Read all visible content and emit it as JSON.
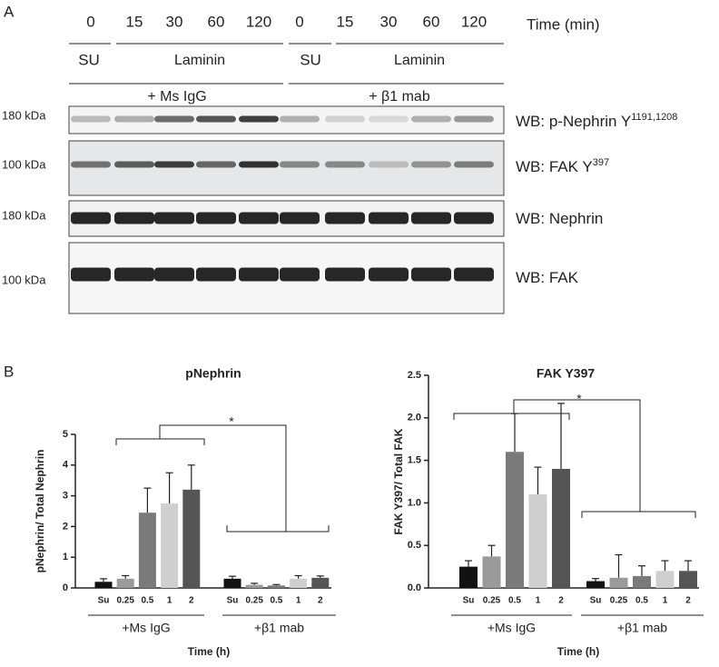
{
  "panel_a": {
    "label": "A",
    "times": [
      "0",
      "15",
      "30",
      "60",
      "120",
      "0",
      "15",
      "30",
      "60",
      "120"
    ],
    "time_label": "Time (min)",
    "conditions": [
      "SU",
      "Laminin",
      "SU",
      "Laminin"
    ],
    "treatments": [
      "+ Ms IgG",
      "+ β1 mab"
    ],
    "blots": [
      {
        "size": "180 kDa",
        "label": "WB: p-Nephrin Y",
        "sup": "1191,1208"
      },
      {
        "size": "100 kDa",
        "label": "WB: FAK Y",
        "sup": "397"
      },
      {
        "size": "180 kDa",
        "label": "WB: Nephrin"
      },
      {
        "size": "100 kDa",
        "label": "WB: FAK"
      }
    ]
  },
  "panel_b_label": "B",
  "chart_data": [
    {
      "type": "bar",
      "title": "pNephrin",
      "y_label": "pNephrin/ Total Nephrin",
      "x_label": "Time (h)",
      "categories": [
        "Su",
        "0.25",
        "0.5",
        "1",
        "2",
        "Su",
        "0.25",
        "0.5",
        "1",
        "2"
      ],
      "groups": [
        "+Ms IgG",
        "+β1 mab"
      ],
      "values": [
        0.2,
        0.3,
        2.45,
        2.75,
        3.2,
        0.3,
        0.1,
        0.08,
        0.3,
        0.33
      ],
      "errors": [
        0.1,
        0.1,
        0.8,
        1.0,
        0.8,
        0.08,
        0.05,
        0.03,
        0.1,
        0.06
      ],
      "colors": [
        "#111111",
        "#9a9a9a",
        "#7a7a7a",
        "#cfcfcf",
        "#555555",
        "#111111",
        "#9a9a9a",
        "#7a7a7a",
        "#cfcfcf",
        "#555555"
      ],
      "ylim": [
        0,
        5
      ],
      "yticks": [
        0,
        1,
        2,
        3,
        4,
        5
      ],
      "annotation": "*"
    },
    {
      "type": "bar",
      "title": "FAK Y397",
      "y_label": "FAK Y397/ Total FAK",
      "x_label": "Time (h)",
      "categories": [
        "Su",
        "0.25",
        "0.5",
        "1",
        "2",
        "Su",
        "0.25",
        "0.5",
        "1",
        "2"
      ],
      "groups": [
        "+Ms IgG",
        "+β1 mab"
      ],
      "values": [
        0.25,
        0.37,
        1.6,
        1.1,
        1.4,
        0.08,
        0.12,
        0.14,
        0.2,
        0.2
      ],
      "errors": [
        0.07,
        0.13,
        0.45,
        0.32,
        0.77,
        0.03,
        0.27,
        0.12,
        0.12,
        0.12
      ],
      "colors": [
        "#111111",
        "#9a9a9a",
        "#7a7a7a",
        "#cfcfcf",
        "#555555",
        "#111111",
        "#9a9a9a",
        "#7a7a7a",
        "#cfcfcf",
        "#555555"
      ],
      "ylim": [
        0,
        2.5
      ],
      "yticks": [
        {
          "value": 0,
          "label": "0.0"
        },
        0.5,
        {
          "value": 1,
          "label": "1.0"
        },
        1.5,
        {
          "value": 2,
          "label": "2.0"
        },
        2.5
      ],
      "annotation": "*"
    }
  ]
}
